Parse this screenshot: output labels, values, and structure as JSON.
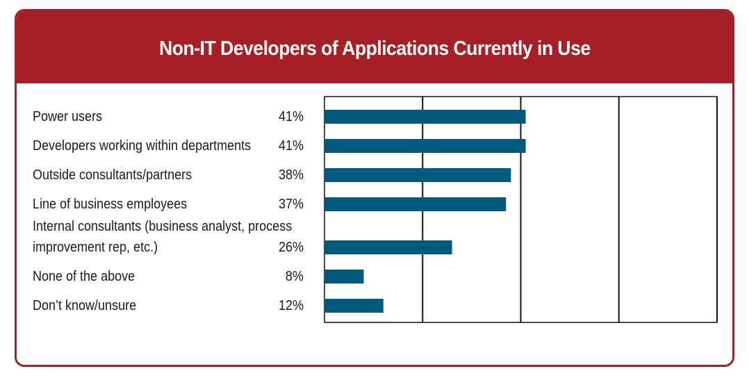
{
  "chart_data": {
    "type": "bar",
    "orientation": "horizontal",
    "title": "Non-IT Developers of Applications Currently in Use",
    "categories": [
      "Power users",
      "Developers working within departments",
      "Outside consultants/partners",
      "Line of business employees",
      "Internal consultants (business analyst, process improvement rep, etc.)",
      "None of the above",
      "Don’t know/unsure"
    ],
    "category_lines": [
      [
        "Power users"
      ],
      [
        "Developers working within departments"
      ],
      [
        "Outside consultants/partners"
      ],
      [
        "Line of business employees"
      ],
      [
        "Internal consultants (business analyst, process",
        "improvement rep, etc.)"
      ],
      [
        "None of the above"
      ],
      [
        "Don’t know/unsure"
      ]
    ],
    "values": [
      41,
      41,
      38,
      37,
      26,
      8,
      12
    ],
    "value_labels": [
      "41%",
      "41%",
      "38%",
      "37%",
      "26%",
      "8%",
      "12%"
    ],
    "xlim": [
      0,
      80
    ],
    "gridlines": [
      20,
      40,
      60,
      80
    ],
    "grid": true,
    "legend": "none",
    "bar_color": "#005a7c",
    "frame_color": "#a51f24"
  }
}
